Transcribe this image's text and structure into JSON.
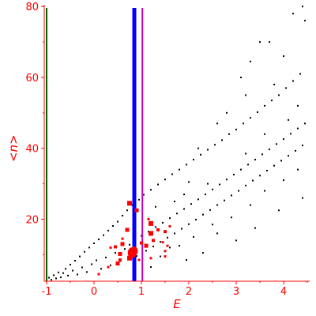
{
  "chart_data": {
    "type": "scatter",
    "xlabel": "E",
    "ylabel": "<n>",
    "xlim": [
      -1.05,
      4.55
    ],
    "ylim": [
      2.5,
      80.5
    ],
    "x_ticks": [
      "-1",
      "0",
      "1",
      "2",
      "3",
      "4"
    ],
    "y_ticks": [
      "20",
      "40",
      "60",
      "80"
    ],
    "colors": {
      "axis": "#ff0000",
      "points": "#000000",
      "highlight": "#ff0000",
      "line_green": "#006400",
      "line_blue": "#0000ff",
      "line_magenta": "#c000c0"
    },
    "vertical_lines": [
      {
        "x": -1.0,
        "color": "#006400",
        "width": 2
      },
      {
        "x": 0.85,
        "color": "#0000ff",
        "width": 5
      },
      {
        "x": 1.02,
        "color": "#c000c0",
        "width": 2
      }
    ],
    "series": [
      {
        "points": [
          [
            -1.0,
            2.8
          ],
          [
            -0.95,
            3.5
          ],
          [
            -0.9,
            2.9
          ],
          [
            -0.85,
            4.2
          ],
          [
            -0.8,
            3.3
          ],
          [
            -0.75,
            5.0
          ],
          [
            -0.7,
            3.6
          ],
          [
            -0.65,
            4.8
          ],
          [
            -0.6,
            6.0
          ],
          [
            -0.55,
            4.1
          ],
          [
            -0.5,
            7.2
          ],
          [
            -0.45,
            5.5
          ],
          [
            -0.4,
            8.3
          ],
          [
            -0.35,
            4.4
          ],
          [
            -0.3,
            9.5
          ],
          [
            -0.25,
            6.4
          ],
          [
            -0.2,
            10.8
          ],
          [
            -0.15,
            5.1
          ],
          [
            -0.1,
            12.0
          ],
          [
            -0.05,
            7.3
          ],
          [
            0.0,
            13.2
          ],
          [
            0.05,
            8.4
          ],
          [
            0.1,
            14.3
          ],
          [
            0.15,
            6.0
          ],
          [
            0.2,
            15.5
          ],
          [
            0.25,
            9.2
          ],
          [
            0.3,
            16.8
          ],
          [
            0.35,
            7.0
          ],
          [
            0.4,
            18.1
          ],
          [
            0.45,
            10.5
          ],
          [
            0.5,
            19.3
          ],
          [
            0.55,
            8.2
          ],
          [
            0.6,
            21.0
          ],
          [
            0.65,
            11.6
          ],
          [
            0.7,
            22.5
          ],
          [
            0.75,
            12.8
          ],
          [
            0.8,
            24.0
          ],
          [
            0.85,
            14.0
          ],
          [
            0.9,
            9.6
          ],
          [
            0.95,
            25.5
          ],
          [
            1.0,
            15.3
          ],
          [
            1.05,
            26.9
          ],
          [
            1.1,
            11.1
          ],
          [
            1.15,
            16.5
          ],
          [
            1.2,
            28.3
          ],
          [
            1.25,
            12.3
          ],
          [
            1.3,
            17.8
          ],
          [
            1.35,
            29.8
          ],
          [
            1.4,
            13.6
          ],
          [
            1.45,
            19.0
          ],
          [
            1.5,
            31.2
          ],
          [
            1.55,
            14.8
          ],
          [
            1.6,
            20.3
          ],
          [
            1.65,
            32.7
          ],
          [
            1.7,
            16.0
          ],
          [
            1.75,
            21.6
          ],
          [
            1.8,
            34.0
          ],
          [
            1.85,
            17.3
          ],
          [
            1.9,
            22.9
          ],
          [
            1.95,
            35.4
          ],
          [
            2.0,
            18.6
          ],
          [
            2.05,
            24.3
          ],
          [
            2.1,
            36.8
          ],
          [
            2.15,
            19.9
          ],
          [
            2.2,
            25.6
          ],
          [
            2.25,
            38.2
          ],
          [
            2.3,
            21.3
          ],
          [
            2.35,
            27.0
          ],
          [
            2.4,
            39.6
          ],
          [
            2.45,
            22.6
          ],
          [
            2.5,
            28.4
          ],
          [
            2.55,
            41.0
          ],
          [
            2.6,
            24.0
          ],
          [
            2.65,
            29.8
          ],
          [
            2.7,
            42.3
          ],
          [
            2.75,
            25.3
          ],
          [
            2.8,
            31.2
          ],
          [
            2.85,
            44.0
          ],
          [
            2.9,
            26.7
          ],
          [
            2.95,
            32.6
          ],
          [
            3.0,
            45.3
          ],
          [
            3.05,
            28.0
          ],
          [
            3.1,
            34.0
          ],
          [
            3.15,
            47.0
          ],
          [
            3.2,
            29.5
          ],
          [
            3.25,
            35.4
          ],
          [
            3.3,
            48.6
          ],
          [
            3.35,
            30.9
          ],
          [
            3.4,
            36.8
          ],
          [
            3.45,
            50.2
          ],
          [
            3.5,
            32.3
          ],
          [
            3.55,
            38.3
          ],
          [
            3.6,
            52.0
          ],
          [
            3.65,
            33.7
          ],
          [
            3.7,
            39.7
          ],
          [
            3.75,
            53.5
          ],
          [
            3.8,
            35.1
          ],
          [
            3.85,
            41.2
          ],
          [
            3.9,
            55.0
          ],
          [
            3.95,
            36.5
          ],
          [
            4.0,
            42.6
          ],
          [
            4.05,
            57.0
          ],
          [
            4.1,
            37.9
          ],
          [
            4.15,
            44.1
          ],
          [
            4.2,
            59.0
          ],
          [
            4.25,
            39.3
          ],
          [
            4.3,
            45.6
          ],
          [
            4.35,
            61.0
          ],
          [
            4.4,
            40.8
          ],
          [
            4.45,
            47.0
          ],
          [
            3.1,
            60.0
          ],
          [
            3.3,
            64.5
          ],
          [
            3.5,
            70.0
          ],
          [
            3.7,
            70.0
          ],
          [
            4.0,
            66.0
          ],
          [
            4.2,
            78.0
          ],
          [
            4.4,
            80.0
          ],
          [
            4.45,
            76.0
          ],
          [
            3.2,
            55.0
          ],
          [
            3.8,
            58.0
          ],
          [
            2.6,
            47.0
          ],
          [
            2.8,
            50.0
          ],
          [
            2.2,
            40.0
          ],
          [
            2.4,
            30.0
          ],
          [
            1.9,
            27.0
          ],
          [
            1.7,
            25.0
          ],
          [
            1.3,
            23.5
          ],
          [
            1.6,
            12.0
          ],
          [
            2.1,
            15.0
          ],
          [
            2.5,
            18.5
          ],
          [
            2.9,
            20.5
          ],
          [
            3.3,
            24.0
          ],
          [
            3.6,
            28.0
          ],
          [
            4.0,
            31.0
          ],
          [
            4.3,
            34.0
          ],
          [
            1.95,
            8.5
          ],
          [
            2.3,
            10.5
          ],
          [
            1.4,
            9.5
          ],
          [
            3.0,
            14.0
          ],
          [
            3.4,
            17.5
          ],
          [
            3.9,
            22.5
          ],
          [
            4.4,
            26.0
          ],
          [
            1.2,
            6.5
          ],
          [
            1.8,
            12.5
          ],
          [
            2.6,
            16.0
          ],
          [
            2.0,
            30.5
          ],
          [
            3.2,
            38.5
          ],
          [
            3.6,
            44.0
          ],
          [
            4.1,
            48.0
          ],
          [
            4.3,
            52.0
          ]
        ]
      },
      {
        "points": [
          [
            0.8,
            10.5
          ],
          [
            0.85,
            11.0
          ],
          [
            0.75,
            9.0
          ],
          [
            0.5,
            7.5
          ],
          [
            0.55,
            10.2
          ],
          [
            0.45,
            12.2
          ],
          [
            0.6,
            13.0
          ],
          [
            0.7,
            17.0
          ],
          [
            0.75,
            24.5
          ],
          [
            0.9,
            22.5
          ],
          [
            1.2,
            18.8
          ],
          [
            1.2,
            16.0
          ],
          [
            1.35,
            17.0
          ],
          [
            1.25,
            14.0
          ],
          [
            1.5,
            16.5
          ],
          [
            1.45,
            13.5
          ],
          [
            1.55,
            12.5
          ],
          [
            1.1,
            12.5
          ],
          [
            1.0,
            13.3
          ],
          [
            1.2,
            9.0
          ],
          [
            0.3,
            6.5
          ],
          [
            0.1,
            4.5
          ],
          [
            0.6,
            14.5
          ],
          [
            0.95,
            8.5
          ],
          [
            1.15,
            20.0
          ],
          [
            1.5,
            11.0
          ],
          [
            1.5,
            9.5
          ],
          [
            1.6,
            18.0
          ],
          [
            0.55,
            8.5
          ],
          [
            0.35,
            12.0
          ]
        ],
        "sizes": [
          14,
          12,
          6,
          5,
          5,
          4,
          5,
          5,
          6,
          5,
          6,
          6,
          4,
          4,
          4,
          3,
          3,
          5,
          4,
          3,
          3,
          3,
          3,
          3,
          3,
          3,
          3,
          3,
          4,
          3
        ]
      }
    ]
  }
}
